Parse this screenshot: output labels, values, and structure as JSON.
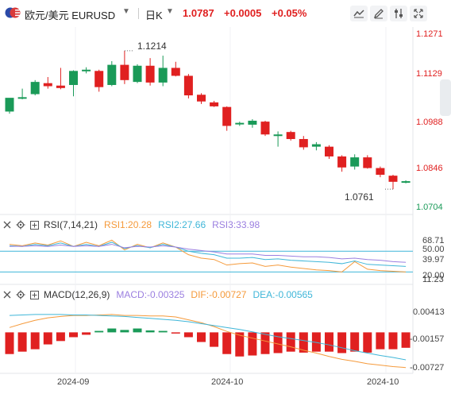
{
  "header": {
    "pair": "欧元/美元 EURUSD",
    "period": "日K",
    "price": "1.0787",
    "change": "+0.0005",
    "change_pct": "+0.05%"
  },
  "toolbar": {
    "icons": [
      "line-chart-icon",
      "draw-tool-icon",
      "settings-sliders-icon",
      "fullscreen-icon"
    ]
  },
  "colors": {
    "up": "#e02020",
    "down": "#1a9a58",
    "rsi1": "#f59a3b",
    "rsi2": "#3fb6d8",
    "rsi3": "#9b7fe0",
    "dif": "#f59a3b",
    "dea": "#3fb6d8",
    "macd_label": "#9b7fe0"
  },
  "price_axis": {
    "labels": [
      "1.1271",
      "1.1129",
      "1.0988",
      "1.0846",
      "1.0704"
    ]
  },
  "annotations": {
    "high": "1.1214",
    "low": "1.0761"
  },
  "rsi": {
    "name": "RSI(7,14,21)",
    "rsi1": "RSI1:20.28",
    "rsi2": "RSI2:27.66",
    "rsi3": "RSI3:33.98",
    "axis": [
      "68.71",
      "50.00",
      "39.97",
      "20.00",
      "11.23"
    ]
  },
  "macd": {
    "name": "MACD(12,26,9)",
    "macd": "MACD:-0.00325",
    "dif": "DIF:-0.00727",
    "dea": "DEA:-0.00565",
    "axis": [
      "0.00413",
      "-0.00157",
      "-0.00727"
    ]
  },
  "time_axis": [
    "2024-09",
    "2024-10",
    "2024-10"
  ],
  "chart_data": [
    {
      "type": "candlestick",
      "title": "欧元/美元 EURUSD 日K",
      "ylim": [
        1.0704,
        1.1271
      ],
      "candles": [
        {
          "o": 1.1015,
          "h": 1.1058,
          "l": 1.1008,
          "c": 1.106,
          "dir": "down"
        },
        {
          "o": 1.106,
          "h": 1.109,
          "l": 1.1055,
          "c": 1.1062,
          "dir": "down"
        },
        {
          "o": 1.1072,
          "h": 1.1118,
          "l": 1.1068,
          "c": 1.1112,
          "dir": "down"
        },
        {
          "o": 1.1108,
          "h": 1.1128,
          "l": 1.109,
          "c": 1.1098,
          "dir": "up"
        },
        {
          "o": 1.1092,
          "h": 1.1158,
          "l": 1.1088,
          "c": 1.11,
          "dir": "up"
        },
        {
          "o": 1.1102,
          "h": 1.115,
          "l": 1.1065,
          "c": 1.1148,
          "dir": "down"
        },
        {
          "o": 1.1148,
          "h": 1.116,
          "l": 1.114,
          "c": 1.1152,
          "dir": "down"
        },
        {
          "o": 1.1148,
          "h": 1.1152,
          "l": 1.108,
          "c": 1.1095,
          "dir": "up"
        },
        {
          "o": 1.1102,
          "h": 1.118,
          "l": 1.1098,
          "c": 1.1168,
          "dir": "down"
        },
        {
          "o": 1.1168,
          "h": 1.1214,
          "l": 1.1105,
          "c": 1.1118,
          "dir": "up"
        },
        {
          "o": 1.1112,
          "h": 1.117,
          "l": 1.1108,
          "c": 1.1165,
          "dir": "down"
        },
        {
          "o": 1.1165,
          "h": 1.119,
          "l": 1.11,
          "c": 1.111,
          "dir": "up"
        },
        {
          "o": 1.111,
          "h": 1.1198,
          "l": 1.1098,
          "c": 1.1158,
          "dir": "down"
        },
        {
          "o": 1.1158,
          "h": 1.1178,
          "l": 1.113,
          "c": 1.1132,
          "dir": "up"
        },
        {
          "o": 1.1132,
          "h": 1.1138,
          "l": 1.1058,
          "c": 1.1068,
          "dir": "up"
        },
        {
          "o": 1.107,
          "h": 1.1075,
          "l": 1.104,
          "c": 1.1048,
          "dir": "up"
        },
        {
          "o": 1.1045,
          "h": 1.105,
          "l": 1.103,
          "c": 1.1032,
          "dir": "up"
        },
        {
          "o": 1.103,
          "h": 1.1032,
          "l": 1.0952,
          "c": 1.0968,
          "dir": "up"
        },
        {
          "o": 1.0975,
          "h": 1.0982,
          "l": 1.0968,
          "c": 1.0978,
          "dir": "flat"
        },
        {
          "o": 1.0972,
          "h": 1.099,
          "l": 1.0962,
          "c": 1.0985,
          "dir": "down"
        },
        {
          "o": 1.0982,
          "h": 1.0985,
          "l": 1.0935,
          "c": 1.094,
          "dir": "up"
        },
        {
          "o": 1.094,
          "h": 1.095,
          "l": 1.09,
          "c": 1.094,
          "dir": "flat"
        },
        {
          "o": 1.0948,
          "h": 1.0952,
          "l": 1.092,
          "c": 1.0925,
          "dir": "up"
        },
        {
          "o": 1.0925,
          "h": 1.0935,
          "l": 1.089,
          "c": 1.0898,
          "dir": "up"
        },
        {
          "o": 1.09,
          "h": 1.0915,
          "l": 1.0888,
          "c": 1.0908,
          "dir": "down"
        },
        {
          "o": 1.09,
          "h": 1.0905,
          "l": 1.086,
          "c": 1.0868,
          "dir": "up"
        },
        {
          "o": 1.0868,
          "h": 1.0872,
          "l": 1.0818,
          "c": 1.0832,
          "dir": "up"
        },
        {
          "o": 1.0835,
          "h": 1.0875,
          "l": 1.0825,
          "c": 1.0865,
          "dir": "down"
        },
        {
          "o": 1.0865,
          "h": 1.0872,
          "l": 1.0828,
          "c": 1.083,
          "dir": "up"
        },
        {
          "o": 1.083,
          "h": 1.0835,
          "l": 1.08,
          "c": 1.0808,
          "dir": "up"
        },
        {
          "o": 1.0805,
          "h": 1.0808,
          "l": 1.0761,
          "c": 1.0785,
          "dir": "up"
        },
        {
          "o": 1.0784,
          "h": 1.079,
          "l": 1.078,
          "c": 1.0787,
          "dir": "flat"
        }
      ]
    },
    {
      "type": "line",
      "title": "RSI(7,14,21)",
      "ylim": [
        11.23,
        68.71
      ],
      "series": [
        {
          "name": "RSI1",
          "values": [
            60,
            58,
            62,
            59,
            65,
            57,
            63,
            58,
            66,
            52,
            60,
            55,
            62,
            56,
            45,
            40,
            38,
            30,
            32,
            33,
            28,
            30,
            27,
            25,
            23,
            22,
            20,
            35,
            24,
            22,
            21,
            20
          ]
        },
        {
          "name": "RSI2",
          "values": [
            58,
            57,
            60,
            58,
            62,
            57,
            60,
            57,
            63,
            54,
            58,
            55,
            60,
            56,
            50,
            47,
            45,
            40,
            40,
            41,
            38,
            39,
            37,
            36,
            35,
            34,
            32,
            36,
            31,
            30,
            29,
            28
          ]
        },
        {
          "name": "RSI3",
          "values": [
            57,
            57,
            58,
            57,
            59,
            57,
            58,
            57,
            60,
            55,
            57,
            56,
            58,
            56,
            53,
            51,
            49,
            46,
            46,
            46,
            44,
            44,
            43,
            42,
            42,
            41,
            39,
            40,
            38,
            37,
            35,
            34
          ]
        }
      ]
    },
    {
      "type": "bar",
      "title": "MACD(12,26,9)",
      "ylim": [
        -0.0085,
        0.0055
      ],
      "series": [
        {
          "name": "MACD",
          "values": [
            -0.0045,
            -0.004,
            -0.0035,
            -0.0025,
            -0.0018,
            -0.001,
            -0.0005,
            0.0003,
            0.0008,
            0.0005,
            0.0008,
            0.0004,
            0.0003,
            -0.0002,
            -0.001,
            -0.002,
            -0.003,
            -0.0045,
            -0.005,
            -0.0048,
            -0.0045,
            -0.0043,
            -0.004,
            -0.0042,
            -0.004,
            -0.004,
            -0.0043,
            -0.004,
            -0.0042,
            -0.0035,
            -0.0035,
            -0.0032
          ]
        },
        {
          "name": "DIF",
          "values": [
            0.001,
            0.0018,
            0.0025,
            0.003,
            0.0033,
            0.0035,
            0.0035,
            0.0036,
            0.0037,
            0.0035,
            0.0035,
            0.0034,
            0.0034,
            0.0032,
            0.0026,
            0.002,
            0.0012,
            0.0002,
            -0.0006,
            -0.0012,
            -0.0018,
            -0.0024,
            -0.003,
            -0.0037,
            -0.0043,
            -0.005,
            -0.0056,
            -0.006,
            -0.0065,
            -0.0068,
            -0.0071,
            -0.0073
          ]
        },
        {
          "name": "DEA",
          "values": [
            0.0035,
            0.0036,
            0.0037,
            0.0037,
            0.0037,
            0.0036,
            0.0036,
            0.0035,
            0.0034,
            0.0033,
            0.0031,
            0.0029,
            0.0027,
            0.0025,
            0.0022,
            0.0018,
            0.0014,
            0.001,
            0.0006,
            0.0001,
            -0.0004,
            -0.0009,
            -0.0013,
            -0.0017,
            -0.0021,
            -0.0026,
            -0.0032,
            -0.0038,
            -0.0043,
            -0.0048,
            -0.0052,
            -0.0057
          ]
        }
      ]
    }
  ]
}
